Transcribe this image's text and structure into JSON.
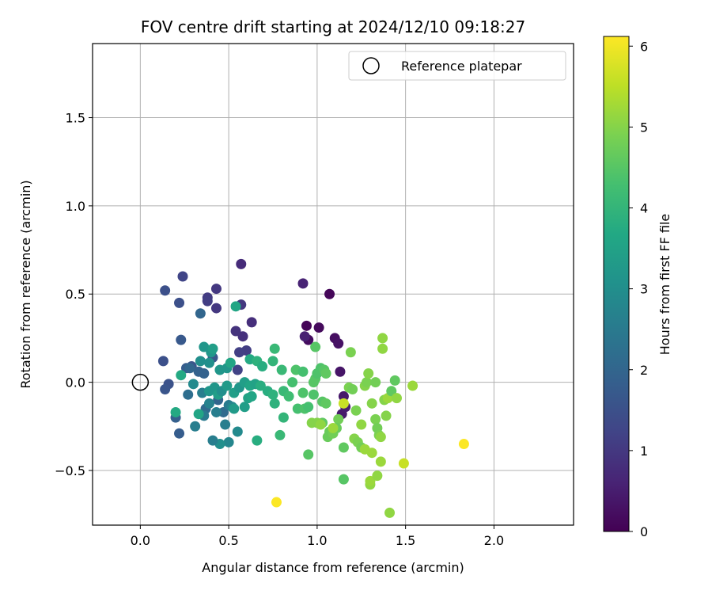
{
  "chart_data": {
    "type": "scatter",
    "title": "FOV centre drift starting at 2024/12/10 09:18:27",
    "xlabel": "Angular distance from reference (arcmin)",
    "ylabel": "Rotation from reference (arcmin)",
    "xlim": [
      -0.27,
      2.45
    ],
    "ylim": [
      -0.81,
      1.92
    ],
    "x_ticks": [
      0.0,
      0.5,
      1.0,
      1.5,
      2.0
    ],
    "x_tick_labels": [
      "0.0",
      "0.5",
      "1.0",
      "1.5",
      "2.0"
    ],
    "y_ticks": [
      -0.5,
      0.0,
      0.5,
      1.0,
      1.5
    ],
    "y_tick_labels": [
      "−0.5",
      "0.0",
      "0.5",
      "1.0",
      "1.5"
    ],
    "grid": true,
    "legend": {
      "position": "top-right",
      "entries": [
        {
          "label": "Reference platepar",
          "marker": "open-circle",
          "color": "#000000"
        }
      ]
    },
    "reference": {
      "x": 0.0,
      "y": 0.0
    },
    "colorbar": {
      "label": "Hours from first FF file",
      "colormap": "viridis",
      "range": [
        0,
        6.12
      ],
      "ticks": [
        0,
        1,
        2,
        3,
        4,
        5,
        6
      ],
      "tick_labels": [
        "0",
        "1",
        "2",
        "3",
        "4",
        "5",
        "6"
      ]
    },
    "points": [
      {
        "x": 0.94,
        "y": 0.32,
        "t": 0.05
      },
      {
        "x": 1.07,
        "y": 0.5,
        "t": 0.1
      },
      {
        "x": 1.01,
        "y": 0.31,
        "t": 0.15
      },
      {
        "x": 0.95,
        "y": 0.24,
        "t": 0.2
      },
      {
        "x": 1.1,
        "y": 0.25,
        "t": 0.25
      },
      {
        "x": 1.12,
        "y": 0.22,
        "t": 0.3
      },
      {
        "x": 1.13,
        "y": 0.06,
        "t": 0.35
      },
      {
        "x": 1.15,
        "y": -0.08,
        "t": 0.4
      },
      {
        "x": 1.14,
        "y": -0.18,
        "t": 0.45
      },
      {
        "x": 1.16,
        "y": -0.14,
        "t": 0.5
      },
      {
        "x": 0.93,
        "y": 0.26,
        "t": 0.55
      },
      {
        "x": 0.92,
        "y": 0.56,
        "t": 0.6
      },
      {
        "x": 0.57,
        "y": 0.67,
        "t": 0.75
      },
      {
        "x": 0.63,
        "y": 0.34,
        "t": 0.8
      },
      {
        "x": 0.58,
        "y": 0.26,
        "t": 0.85
      },
      {
        "x": 0.54,
        "y": 0.29,
        "t": 0.9
      },
      {
        "x": 0.43,
        "y": 0.53,
        "t": 1.0
      },
      {
        "x": 0.43,
        "y": 0.42,
        "t": 1.0
      },
      {
        "x": 0.38,
        "y": 0.48,
        "t": 1.05
      },
      {
        "x": 0.38,
        "y": 0.46,
        "t": 1.1
      },
      {
        "x": 0.57,
        "y": 0.44,
        "t": 1.0
      },
      {
        "x": 0.6,
        "y": 0.18,
        "t": 1.1
      },
      {
        "x": 0.56,
        "y": 0.17,
        "t": 1.15
      },
      {
        "x": 0.55,
        "y": 0.07,
        "t": 1.2
      },
      {
        "x": 0.24,
        "y": 0.6,
        "t": 1.25
      },
      {
        "x": 0.14,
        "y": 0.52,
        "t": 1.5
      },
      {
        "x": 0.22,
        "y": 0.45,
        "t": 1.5
      },
      {
        "x": 0.34,
        "y": 0.39,
        "t": 2.0
      },
      {
        "x": 0.23,
        "y": 0.24,
        "t": 1.7
      },
      {
        "x": 0.13,
        "y": 0.12,
        "t": 1.5
      },
      {
        "x": 0.16,
        "y": -0.01,
        "t": 1.55
      },
      {
        "x": 0.14,
        "y": -0.04,
        "t": 1.6
      },
      {
        "x": 0.22,
        "y": -0.29,
        "t": 1.8
      },
      {
        "x": 0.2,
        "y": -0.2,
        "t": 1.85
      },
      {
        "x": 0.26,
        "y": 0.08,
        "t": 1.8
      },
      {
        "x": 0.29,
        "y": 0.09,
        "t": 1.6
      },
      {
        "x": 0.33,
        "y": 0.06,
        "t": 1.9
      },
      {
        "x": 0.36,
        "y": 0.05,
        "t": 1.9
      },
      {
        "x": 0.41,
        "y": 0.14,
        "t": 1.65
      },
      {
        "x": 0.44,
        "y": -0.1,
        "t": 2.0
      },
      {
        "x": 0.47,
        "y": -0.17,
        "t": 2.1
      },
      {
        "x": 0.37,
        "y": -0.15,
        "t": 2.1
      },
      {
        "x": 0.27,
        "y": -0.07,
        "t": 2.2
      },
      {
        "x": 0.31,
        "y": -0.25,
        "t": 2.6
      },
      {
        "x": 0.36,
        "y": -0.19,
        "t": 2.5
      },
      {
        "x": 0.48,
        "y": -0.24,
        "t": 2.6
      },
      {
        "x": 0.5,
        "y": -0.13,
        "t": 2.5
      },
      {
        "x": 0.52,
        "y": -0.14,
        "t": 2.8
      },
      {
        "x": 0.55,
        "y": -0.28,
        "t": 2.9
      },
      {
        "x": 0.5,
        "y": -0.34,
        "t": 2.8
      },
      {
        "x": 0.45,
        "y": -0.35,
        "t": 3.0
      },
      {
        "x": 0.41,
        "y": -0.33,
        "t": 2.6
      },
      {
        "x": 0.43,
        "y": -0.17,
        "t": 2.6
      },
      {
        "x": 0.39,
        "y": -0.12,
        "t": 2.7
      },
      {
        "x": 0.35,
        "y": -0.06,
        "t": 2.6
      },
      {
        "x": 0.3,
        "y": -0.01,
        "t": 2.9
      },
      {
        "x": 0.34,
        "y": 0.12,
        "t": 3.0
      },
      {
        "x": 0.39,
        "y": 0.11,
        "t": 3.0
      },
      {
        "x": 0.45,
        "y": 0.07,
        "t": 3.2
      },
      {
        "x": 0.49,
        "y": 0.08,
        "t": 3.2
      },
      {
        "x": 0.51,
        "y": 0.11,
        "t": 3.6
      },
      {
        "x": 0.4,
        "y": 0.17,
        "t": 3.2
      },
      {
        "x": 0.36,
        "y": 0.2,
        "t": 3.2
      },
      {
        "x": 0.41,
        "y": 0.19,
        "t": 3.4
      },
      {
        "x": 0.54,
        "y": 0.43,
        "t": 3.6
      },
      {
        "x": 0.23,
        "y": 0.04,
        "t": 3.7
      },
      {
        "x": 0.2,
        "y": -0.17,
        "t": 3.7
      },
      {
        "x": 0.33,
        "y": -0.18,
        "t": 3.6
      },
      {
        "x": 0.39,
        "y": -0.05,
        "t": 3.2
      },
      {
        "x": 0.42,
        "y": -0.03,
        "t": 3.2
      },
      {
        "x": 0.44,
        "y": -0.07,
        "t": 3.4
      },
      {
        "x": 0.46,
        "y": -0.05,
        "t": 3.0
      },
      {
        "x": 0.49,
        "y": -0.02,
        "t": 3.3
      },
      {
        "x": 0.53,
        "y": -0.06,
        "t": 3.4
      },
      {
        "x": 0.56,
        "y": -0.03,
        "t": 3.2
      },
      {
        "x": 0.59,
        "y": 0.0,
        "t": 3.4
      },
      {
        "x": 0.62,
        "y": 0.13,
        "t": 3.7
      },
      {
        "x": 0.66,
        "y": 0.12,
        "t": 3.9
      },
      {
        "x": 0.69,
        "y": 0.09,
        "t": 3.8
      },
      {
        "x": 0.75,
        "y": 0.12,
        "t": 4.0
      },
      {
        "x": 0.76,
        "y": 0.19,
        "t": 4.1
      },
      {
        "x": 0.61,
        "y": -0.09,
        "t": 3.5
      },
      {
        "x": 0.63,
        "y": -0.08,
        "t": 3.6
      },
      {
        "x": 0.59,
        "y": -0.14,
        "t": 3.4
      },
      {
        "x": 0.53,
        "y": -0.15,
        "t": 3.3
      },
      {
        "x": 0.62,
        "y": -0.02,
        "t": 3.6
      },
      {
        "x": 0.65,
        "y": -0.01,
        "t": 3.5
      },
      {
        "x": 0.68,
        "y": -0.02,
        "t": 3.8
      },
      {
        "x": 0.72,
        "y": -0.05,
        "t": 3.8
      },
      {
        "x": 0.75,
        "y": -0.07,
        "t": 3.9
      },
      {
        "x": 0.76,
        "y": -0.12,
        "t": 3.9
      },
      {
        "x": 0.81,
        "y": -0.05,
        "t": 4.1
      },
      {
        "x": 0.81,
        "y": -0.2,
        "t": 4.0
      },
      {
        "x": 0.79,
        "y": -0.3,
        "t": 4.1
      },
      {
        "x": 0.66,
        "y": -0.33,
        "t": 3.8
      },
      {
        "x": 0.8,
        "y": 0.07,
        "t": 4.1
      },
      {
        "x": 0.84,
        "y": -0.08,
        "t": 4.2
      },
      {
        "x": 0.86,
        "y": 0.0,
        "t": 4.3
      },
      {
        "x": 0.88,
        "y": 0.07,
        "t": 4.4
      },
      {
        "x": 0.92,
        "y": 0.06,
        "t": 4.3
      },
      {
        "x": 0.92,
        "y": -0.06,
        "t": 4.4
      },
      {
        "x": 0.89,
        "y": -0.15,
        "t": 4.3
      },
      {
        "x": 0.93,
        "y": -0.15,
        "t": 4.4
      },
      {
        "x": 0.95,
        "y": -0.14,
        "t": 4.3
      },
      {
        "x": 0.98,
        "y": 0.0,
        "t": 4.5
      },
      {
        "x": 0.98,
        "y": -0.07,
        "t": 4.4
      },
      {
        "x": 0.99,
        "y": 0.02,
        "t": 4.5
      },
      {
        "x": 1.0,
        "y": 0.05,
        "t": 4.4
      },
      {
        "x": 1.02,
        "y": 0.08,
        "t": 4.4
      },
      {
        "x": 1.04,
        "y": 0.07,
        "t": 4.5
      },
      {
        "x": 1.05,
        "y": 0.05,
        "t": 4.6
      },
      {
        "x": 1.03,
        "y": -0.11,
        "t": 4.5
      },
      {
        "x": 1.05,
        "y": -0.12,
        "t": 4.6
      },
      {
        "x": 1.03,
        "y": -0.23,
        "t": 4.6
      },
      {
        "x": 1.07,
        "y": -0.28,
        "t": 4.7
      },
      {
        "x": 1.06,
        "y": -0.31,
        "t": 4.7
      },
      {
        "x": 1.09,
        "y": -0.29,
        "t": 4.8
      },
      {
        "x": 1.12,
        "y": -0.21,
        "t": 4.8
      },
      {
        "x": 1.11,
        "y": -0.26,
        "t": 4.7
      },
      {
        "x": 1.15,
        "y": -0.37,
        "t": 4.6
      },
      {
        "x": 1.18,
        "y": -0.03,
        "t": 4.9
      },
      {
        "x": 1.2,
        "y": -0.04,
        "t": 4.8
      },
      {
        "x": 1.22,
        "y": -0.16,
        "t": 4.9
      },
      {
        "x": 1.21,
        "y": -0.32,
        "t": 5.0
      },
      {
        "x": 1.23,
        "y": -0.34,
        "t": 4.9
      },
      {
        "x": 1.25,
        "y": -0.37,
        "t": 4.8
      },
      {
        "x": 1.27,
        "y": -0.02,
        "t": 5.0
      },
      {
        "x": 1.28,
        "y": 0.0,
        "t": 4.9
      },
      {
        "x": 1.29,
        "y": 0.05,
        "t": 5.0
      },
      {
        "x": 1.33,
        "y": 0.0,
        "t": 4.8
      },
      {
        "x": 1.31,
        "y": -0.12,
        "t": 5.0
      },
      {
        "x": 1.33,
        "y": -0.21,
        "t": 4.9
      },
      {
        "x": 1.34,
        "y": -0.26,
        "t": 4.8
      },
      {
        "x": 1.35,
        "y": -0.3,
        "t": 4.9
      },
      {
        "x": 1.36,
        "y": -0.31,
        "t": 5.1
      },
      {
        "x": 1.38,
        "y": -0.1,
        "t": 5.0
      },
      {
        "x": 1.4,
        "y": -0.09,
        "t": 5.2
      },
      {
        "x": 1.39,
        "y": -0.19,
        "t": 5.0
      },
      {
        "x": 1.42,
        "y": -0.05,
        "t": 4.6
      },
      {
        "x": 1.44,
        "y": 0.01,
        "t": 4.6
      },
      {
        "x": 1.45,
        "y": -0.09,
        "t": 5.1
      },
      {
        "x": 1.37,
        "y": 0.25,
        "t": 5.1
      },
      {
        "x": 1.37,
        "y": 0.19,
        "t": 5.1
      },
      {
        "x": 1.19,
        "y": 0.17,
        "t": 4.9
      },
      {
        "x": 0.99,
        "y": 0.2,
        "t": 4.5
      },
      {
        "x": 0.95,
        "y": -0.41,
        "t": 4.5
      },
      {
        "x": 0.97,
        "y": -0.23,
        "t": 5.0
      },
      {
        "x": 1.0,
        "y": -0.23,
        "t": 5.0
      },
      {
        "x": 1.02,
        "y": -0.24,
        "t": 5.1
      },
      {
        "x": 1.09,
        "y": -0.26,
        "t": 5.2
      },
      {
        "x": 1.15,
        "y": -0.12,
        "t": 5.6
      },
      {
        "x": 1.15,
        "y": -0.55,
        "t": 4.5
      },
      {
        "x": 1.25,
        "y": -0.24,
        "t": 5.1
      },
      {
        "x": 1.27,
        "y": -0.38,
        "t": 5.2
      },
      {
        "x": 1.31,
        "y": -0.4,
        "t": 5.2
      },
      {
        "x": 1.3,
        "y": -0.58,
        "t": 5.1
      },
      {
        "x": 1.3,
        "y": -0.56,
        "t": 5.2
      },
      {
        "x": 1.34,
        "y": -0.53,
        "t": 5.1
      },
      {
        "x": 1.36,
        "y": -0.45,
        "t": 5.2
      },
      {
        "x": 1.41,
        "y": -0.74,
        "t": 5.1
      },
      {
        "x": 1.49,
        "y": -0.46,
        "t": 5.6
      },
      {
        "x": 1.54,
        "y": -0.02,
        "t": 5.2
      },
      {
        "x": 1.83,
        "y": -0.35,
        "t": 6.1
      },
      {
        "x": 0.77,
        "y": -0.68,
        "t": 6.1
      },
      {
        "x": 0.28,
        "y": 0.08,
        "t": 2.0
      }
    ]
  }
}
